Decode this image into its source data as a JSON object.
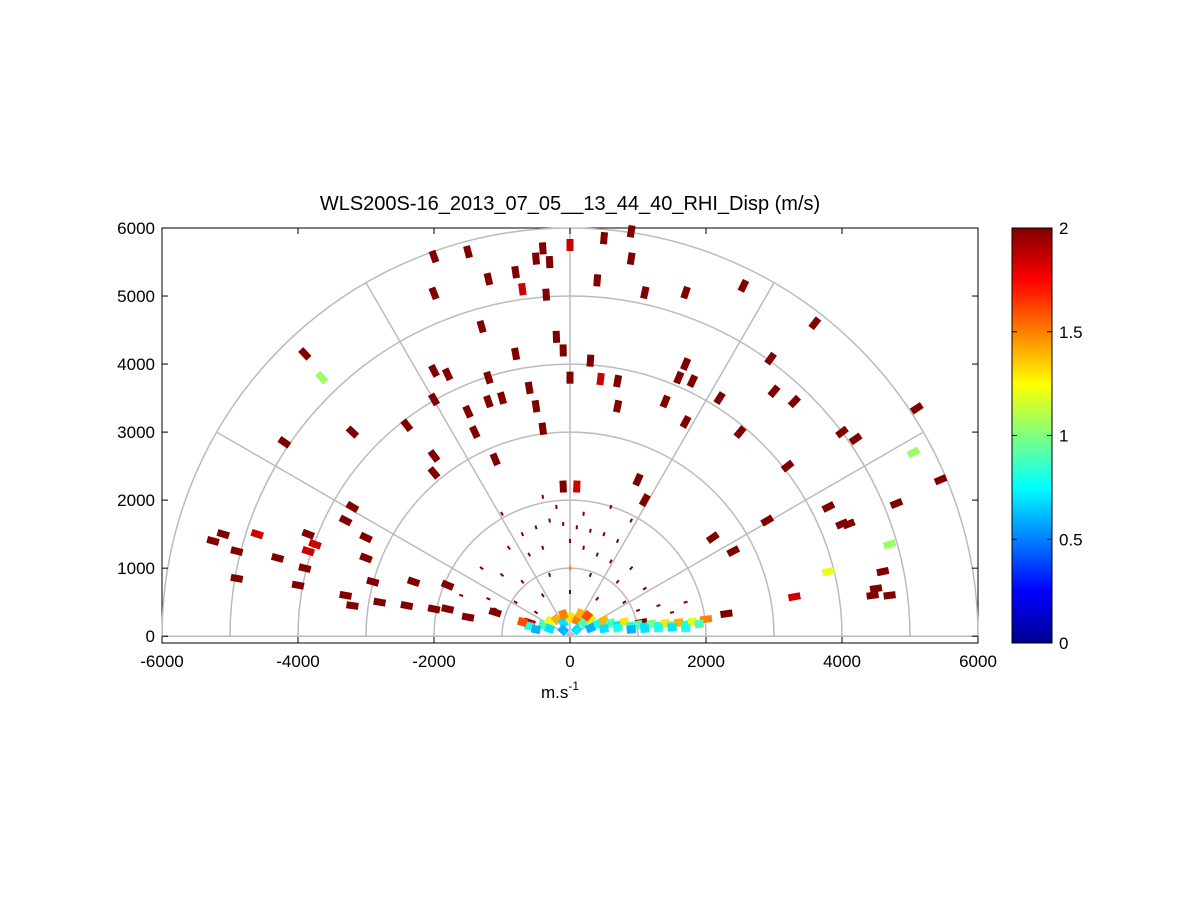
{
  "chart_data": {
    "type": "scatter",
    "title": "WLS200S-16_2013_07_05__13_44_40_RHI_Disp (m/s)",
    "xlabel": "m.s",
    "xlabel_superscript": "-1",
    "ylabel": "",
    "xlim": [
      -6000,
      6000
    ],
    "ylim": [
      -100,
      6000
    ],
    "xticks": [
      "-6000",
      "-4000",
      "-2000",
      "0",
      "2000",
      "4000",
      "6000"
    ],
    "yticks": [
      "0",
      "1000",
      "2000",
      "3000",
      "4000",
      "5000",
      "6000"
    ],
    "polar_rings": [
      1000,
      2000,
      3000,
      4000,
      5000,
      6000
    ],
    "polar_spokes_deg": [
      30,
      60,
      90,
      120,
      150
    ],
    "grid": true,
    "colorbar": {
      "range": [
        0,
        2
      ],
      "ticks": [
        "0",
        "0.5",
        "1",
        "1.5",
        "2"
      ],
      "colormap": "jet"
    },
    "points": [
      {
        "x": 900,
        "y": 5950,
        "v": 2.0
      },
      {
        "x": 500,
        "y": 5850,
        "v": 2.0
      },
      {
        "x": 0,
        "y": 5750,
        "v": 1.85
      },
      {
        "x": -400,
        "y": 5700,
        "v": 2.0
      },
      {
        "x": -1500,
        "y": 5650,
        "v": 2.0
      },
      {
        "x": -2000,
        "y": 5580,
        "v": 2.0
      },
      {
        "x": -500,
        "y": 5550,
        "v": 2.0
      },
      {
        "x": -300,
        "y": 5500,
        "v": 2.0
      },
      {
        "x": 900,
        "y": 5550,
        "v": 2.0
      },
      {
        "x": -800,
        "y": 5350,
        "v": 2.0
      },
      {
        "x": -1200,
        "y": 5250,
        "v": 2.0
      },
      {
        "x": 400,
        "y": 5230,
        "v": 2.0
      },
      {
        "x": -700,
        "y": 5100,
        "v": 1.85
      },
      {
        "x": -2000,
        "y": 5040,
        "v": 2.0
      },
      {
        "x": -350,
        "y": 5020,
        "v": 2.0
      },
      {
        "x": 1100,
        "y": 5050,
        "v": 2.0
      },
      {
        "x": 1700,
        "y": 5050,
        "v": 2.0
      },
      {
        "x": 2550,
        "y": 5150,
        "v": 2.0
      },
      {
        "x": 3600,
        "y": 4600,
        "v": 2.0
      },
      {
        "x": -1300,
        "y": 4550,
        "v": 2.0
      },
      {
        "x": -200,
        "y": 4400,
        "v": 2.0
      },
      {
        "x": -100,
        "y": 4200,
        "v": 2.0
      },
      {
        "x": -3900,
        "y": 4150,
        "v": 2.0
      },
      {
        "x": -800,
        "y": 4150,
        "v": 2.0
      },
      {
        "x": 300,
        "y": 4050,
        "v": 2.0
      },
      {
        "x": 1700,
        "y": 4000,
        "v": 2.0
      },
      {
        "x": 2950,
        "y": 4080,
        "v": 2.0
      },
      {
        "x": -3650,
        "y": 3800,
        "v": 1.05
      },
      {
        "x": -2000,
        "y": 3900,
        "v": 2.0
      },
      {
        "x": -1800,
        "y": 3850,
        "v": 2.0
      },
      {
        "x": -1200,
        "y": 3800,
        "v": 2.0
      },
      {
        "x": 0,
        "y": 3800,
        "v": 2.0
      },
      {
        "x": 450,
        "y": 3780,
        "v": 1.85
      },
      {
        "x": 700,
        "y": 3750,
        "v": 2.0
      },
      {
        "x": 1600,
        "y": 3800,
        "v": 2.0
      },
      {
        "x": 1800,
        "y": 3750,
        "v": 2.0
      },
      {
        "x": -600,
        "y": 3650,
        "v": 2.0
      },
      {
        "x": -1000,
        "y": 3500,
        "v": 2.0
      },
      {
        "x": -1200,
        "y": 3450,
        "v": 2.0
      },
      {
        "x": -2000,
        "y": 3480,
        "v": 2.0
      },
      {
        "x": -500,
        "y": 3380,
        "v": 2.0
      },
      {
        "x": 700,
        "y": 3380,
        "v": 2.0
      },
      {
        "x": 1400,
        "y": 3450,
        "v": 2.0
      },
      {
        "x": 2200,
        "y": 3500,
        "v": 2.0
      },
      {
        "x": 3000,
        "y": 3600,
        "v": 2.0
      },
      {
        "x": 3300,
        "y": 3450,
        "v": 2.0
      },
      {
        "x": 5100,
        "y": 3350,
        "v": 2.0
      },
      {
        "x": -1500,
        "y": 3300,
        "v": 2.0
      },
      {
        "x": -2400,
        "y": 3100,
        "v": 2.0
      },
      {
        "x": -3200,
        "y": 3000,
        "v": 2.0
      },
      {
        "x": -4200,
        "y": 2850,
        "v": 2.0
      },
      {
        "x": -1400,
        "y": 3000,
        "v": 2.0
      },
      {
        "x": -400,
        "y": 3050,
        "v": 2.0
      },
      {
        "x": 1700,
        "y": 3150,
        "v": 2.0
      },
      {
        "x": 2500,
        "y": 3000,
        "v": 2.0
      },
      {
        "x": 4000,
        "y": 3000,
        "v": 2.0
      },
      {
        "x": 4200,
        "y": 2900,
        "v": 2.0
      },
      {
        "x": 5050,
        "y": 2700,
        "v": 1.05
      },
      {
        "x": -2000,
        "y": 2650,
        "v": 2.0
      },
      {
        "x": -1100,
        "y": 2600,
        "v": 2.0
      },
      {
        "x": -2000,
        "y": 2400,
        "v": 2.0
      },
      {
        "x": 3200,
        "y": 2500,
        "v": 2.0
      },
      {
        "x": 5450,
        "y": 2300,
        "v": 2.0
      },
      {
        "x": -100,
        "y": 2200,
        "v": 2.0
      },
      {
        "x": 100,
        "y": 2200,
        "v": 1.85
      },
      {
        "x": 1000,
        "y": 2300,
        "v": 2.0
      },
      {
        "x": -3200,
        "y": 1900,
        "v": 2.0
      },
      {
        "x": 3800,
        "y": 1900,
        "v": 2.0
      },
      {
        "x": 4800,
        "y": 1950,
        "v": 2.0
      },
      {
        "x": 1100,
        "y": 2000,
        "v": 2.0
      },
      {
        "x": -3300,
        "y": 1700,
        "v": 2.0
      },
      {
        "x": 2900,
        "y": 1700,
        "v": 2.0
      },
      {
        "x": 4100,
        "y": 1650,
        "v": 2.0
      },
      {
        "x": 4000,
        "y": 1650,
        "v": 2.0
      },
      {
        "x": -5250,
        "y": 1400,
        "v": 2.0
      },
      {
        "x": -5100,
        "y": 1500,
        "v": 2.0
      },
      {
        "x": -4600,
        "y": 1500,
        "v": 1.85
      },
      {
        "x": -3850,
        "y": 1500,
        "v": 2.0
      },
      {
        "x": -3750,
        "y": 1350,
        "v": 1.85
      },
      {
        "x": -3000,
        "y": 1450,
        "v": 2.0
      },
      {
        "x": 2100,
        "y": 1450,
        "v": 2.0
      },
      {
        "x": 4700,
        "y": 1350,
        "v": 1.05
      },
      {
        "x": -4900,
        "y": 1250,
        "v": 2.0
      },
      {
        "x": -3850,
        "y": 1250,
        "v": 1.85
      },
      {
        "x": -4300,
        "y": 1150,
        "v": 2.0
      },
      {
        "x": -3000,
        "y": 1150,
        "v": 2.0
      },
      {
        "x": 2400,
        "y": 1250,
        "v": 2.0
      },
      {
        "x": -3900,
        "y": 1000,
        "v": 2.0
      },
      {
        "x": 3800,
        "y": 950,
        "v": 1.2
      },
      {
        "x": 4600,
        "y": 950,
        "v": 2.0
      },
      {
        "x": -4900,
        "y": 850,
        "v": 2.0
      },
      {
        "x": -4000,
        "y": 750,
        "v": 2.0
      },
      {
        "x": -2900,
        "y": 800,
        "v": 2.0
      },
      {
        "x": -2300,
        "y": 800,
        "v": 2.0
      },
      {
        "x": -1800,
        "y": 750,
        "v": 2.0
      },
      {
        "x": 4500,
        "y": 700,
        "v": 2.0
      },
      {
        "x": -3300,
        "y": 600,
        "v": 2.0
      },
      {
        "x": 3300,
        "y": 580,
        "v": 1.85
      },
      {
        "x": 4700,
        "y": 600,
        "v": 2.0
      },
      {
        "x": 4450,
        "y": 600,
        "v": 2.0
      },
      {
        "x": -2800,
        "y": 500,
        "v": 2.0
      },
      {
        "x": -2400,
        "y": 450,
        "v": 2.0
      },
      {
        "x": -3200,
        "y": 450,
        "v": 2.0
      },
      {
        "x": -2000,
        "y": 400,
        "v": 2.0
      },
      {
        "x": -1800,
        "y": 400,
        "v": 2.0
      },
      {
        "x": 2300,
        "y": 330,
        "v": 2.0
      },
      {
        "x": -1100,
        "y": 350,
        "v": 2.0
      },
      {
        "x": -600,
        "y": 200,
        "v": 1.85
      },
      {
        "x": 1050,
        "y": 200,
        "v": 2.0
      },
      {
        "x": 2000,
        "y": 250,
        "v": 1.5
      },
      {
        "x": -1500,
        "y": 280,
        "v": 2.0
      }
    ],
    "dense_core": [
      {
        "x": -600,
        "y": 150,
        "v": 0.8
      },
      {
        "x": -400,
        "y": 160,
        "v": 0.9
      },
      {
        "x": -300,
        "y": 220,
        "v": 1.2
      },
      {
        "x": -200,
        "y": 250,
        "v": 1.4
      },
      {
        "x": -100,
        "y": 200,
        "v": 0.7
      },
      {
        "x": 0,
        "y": 280,
        "v": 1.3
      },
      {
        "x": 100,
        "y": 240,
        "v": 1.5
      },
      {
        "x": 200,
        "y": 200,
        "v": 0.9
      },
      {
        "x": 300,
        "y": 260,
        "v": 1.3
      },
      {
        "x": 400,
        "y": 180,
        "v": 0.8
      },
      {
        "x": 500,
        "y": 230,
        "v": 1.4
      },
      {
        "x": 600,
        "y": 190,
        "v": 0.9
      },
      {
        "x": 700,
        "y": 160,
        "v": 0.7
      },
      {
        "x": 800,
        "y": 210,
        "v": 1.3
      },
      {
        "x": 900,
        "y": 150,
        "v": 0.8
      },
      {
        "x": 1000,
        "y": 170,
        "v": 0.9
      },
      {
        "x": 1100,
        "y": 140,
        "v": 0.7
      },
      {
        "x": 1200,
        "y": 180,
        "v": 1.0
      },
      {
        "x": 1300,
        "y": 150,
        "v": 0.8
      },
      {
        "x": 1400,
        "y": 190,
        "v": 1.3
      },
      {
        "x": 1500,
        "y": 160,
        "v": 0.9
      },
      {
        "x": 1600,
        "y": 200,
        "v": 1.4
      },
      {
        "x": 1700,
        "y": 170,
        "v": 0.8
      },
      {
        "x": 1800,
        "y": 210,
        "v": 1.2
      },
      {
        "x": 1900,
        "y": 180,
        "v": 0.9
      },
      {
        "x": -500,
        "y": 100,
        "v": 0.6
      },
      {
        "x": -300,
        "y": 110,
        "v": 0.7
      },
      {
        "x": -100,
        "y": 90,
        "v": 0.6
      },
      {
        "x": 100,
        "y": 100,
        "v": 0.7
      },
      {
        "x": 300,
        "y": 120,
        "v": 0.6
      },
      {
        "x": 500,
        "y": 110,
        "v": 0.7
      },
      {
        "x": 700,
        "y": 120,
        "v": 0.8
      },
      {
        "x": 900,
        "y": 100,
        "v": 0.6
      },
      {
        "x": 1100,
        "y": 110,
        "v": 0.7
      },
      {
        "x": 1300,
        "y": 120,
        "v": 0.8
      },
      {
        "x": 1500,
        "y": 130,
        "v": 0.7
      },
      {
        "x": 1700,
        "y": 120,
        "v": 0.8
      },
      {
        "x": -700,
        "y": 210,
        "v": 1.6
      },
      {
        "x": -100,
        "y": 320,
        "v": 1.5
      },
      {
        "x": 150,
        "y": 330,
        "v": 1.4
      },
      {
        "x": 250,
        "y": 300,
        "v": 1.6
      }
    ],
    "inner_sparse": [
      {
        "x": -700,
        "y": 1500,
        "v": 2.0
      },
      {
        "x": -500,
        "y": 1600,
        "v": 2.0
      },
      {
        "x": -300,
        "y": 1700,
        "v": 2.0
      },
      {
        "x": -100,
        "y": 1650,
        "v": 2.0
      },
      {
        "x": 100,
        "y": 1600,
        "v": 2.0
      },
      {
        "x": 300,
        "y": 1550,
        "v": 2.0
      },
      {
        "x": 500,
        "y": 1500,
        "v": 2.0
      },
      {
        "x": 700,
        "y": 1400,
        "v": 2.0
      },
      {
        "x": -900,
        "y": 1300,
        "v": 2.0
      },
      {
        "x": -600,
        "y": 1200,
        "v": 2.0
      },
      {
        "x": -400,
        "y": 1300,
        "v": 2.0
      },
      {
        "x": 0,
        "y": 1400,
        "v": 2.0
      },
      {
        "x": 200,
        "y": 1300,
        "v": 2.0
      },
      {
        "x": 400,
        "y": 1200,
        "v": 2.0
      },
      {
        "x": 600,
        "y": 1100,
        "v": 2.0
      },
      {
        "x": 900,
        "y": 1000,
        "v": 2.0
      },
      {
        "x": -1300,
        "y": 1000,
        "v": 2.0
      },
      {
        "x": -1000,
        "y": 900,
        "v": 2.0
      },
      {
        "x": -700,
        "y": 800,
        "v": 2.0
      },
      {
        "x": -300,
        "y": 900,
        "v": 2.0
      },
      {
        "x": 0,
        "y": 1000,
        "v": 1.5
      },
      {
        "x": 300,
        "y": 900,
        "v": 2.0
      },
      {
        "x": 700,
        "y": 800,
        "v": 2.0
      },
      {
        "x": 1100,
        "y": 700,
        "v": 2.0
      },
      {
        "x": -1600,
        "y": 600,
        "v": 2.0
      },
      {
        "x": -1200,
        "y": 550,
        "v": 2.0
      },
      {
        "x": -800,
        "y": 500,
        "v": 2.0
      },
      {
        "x": -400,
        "y": 600,
        "v": 2.0
      },
      {
        "x": 0,
        "y": 650,
        "v": 2.0
      },
      {
        "x": 400,
        "y": 550,
        "v": 2.0
      },
      {
        "x": 800,
        "y": 500,
        "v": 2.0
      },
      {
        "x": 1300,
        "y": 450,
        "v": 2.0
      },
      {
        "x": 1700,
        "y": 500,
        "v": 2.0
      },
      {
        "x": -200,
        "y": 1900,
        "v": 2.0
      },
      {
        "x": 200,
        "y": 1800,
        "v": 2.0
      },
      {
        "x": -400,
        "y": 2050,
        "v": 2.0
      },
      {
        "x": 600,
        "y": 1900,
        "v": 2.0
      },
      {
        "x": -1000,
        "y": 1800,
        "v": 2.0
      },
      {
        "x": 900,
        "y": 1700,
        "v": 2.0
      },
      {
        "x": -1100,
        "y": 400,
        "v": 2.0
      },
      {
        "x": -500,
        "y": 350,
        "v": 2.0
      },
      {
        "x": 1000,
        "y": 380,
        "v": 2.0
      },
      {
        "x": 1500,
        "y": 350,
        "v": 2.0
      }
    ]
  }
}
